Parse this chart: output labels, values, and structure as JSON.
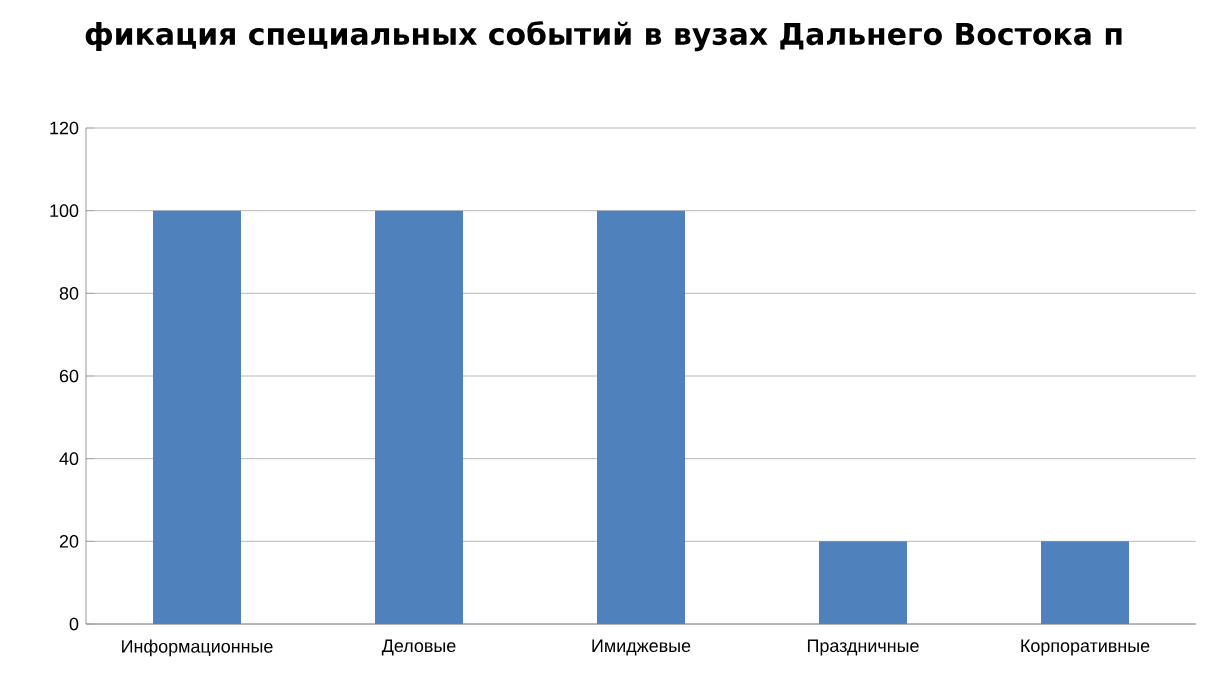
{
  "chart_data": {
    "type": "bar",
    "title": "фикация специальных событий в вузах Дальнего Востока п",
    "categories": [
      "Информационные",
      "Деловые",
      "Имиджевые",
      "Праздничные",
      "Корпоративные"
    ],
    "values": [
      100,
      100,
      100,
      20,
      20
    ],
    "color": "#4f81bd",
    "ylim": [
      0,
      120
    ],
    "yticks": [
      0,
      20,
      40,
      60,
      80,
      100,
      120
    ],
    "grid": "y"
  }
}
